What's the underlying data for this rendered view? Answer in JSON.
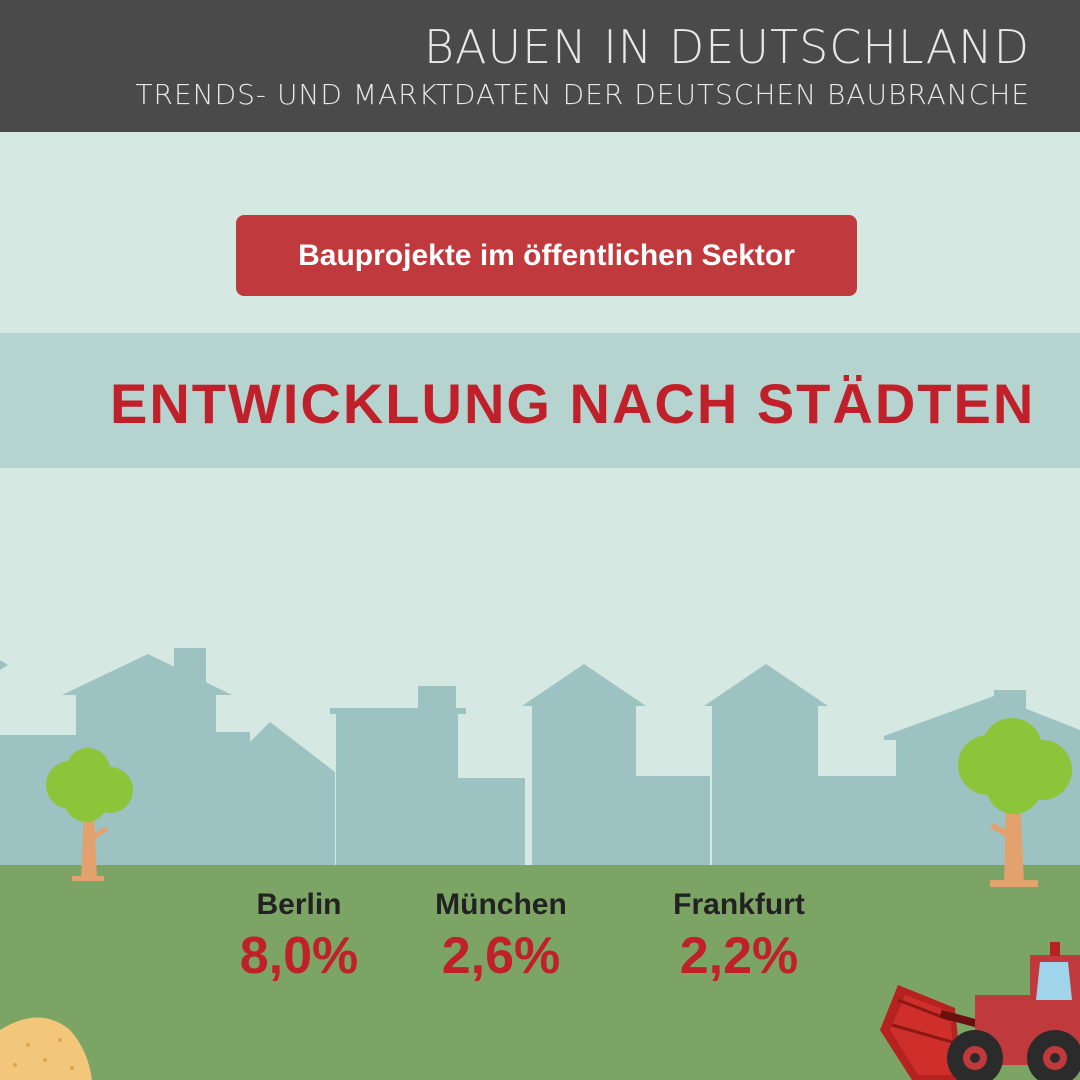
{
  "header": {
    "title": "BAUEN IN DEUTSCHLAND",
    "subtitle": "TRENDS- UND MARKTDATEN DER DEUTSCHEN BAUBRANCHE"
  },
  "pill_label": "Bauprojekte im öffentlichen Sektor",
  "section_heading": "ENTWICKLUNG NACH STÄDTEN",
  "stats": [
    {
      "city": "Berlin",
      "value": "8,0%"
    },
    {
      "city": "München",
      "value": "2,6%"
    },
    {
      "city": "Frankfurt",
      "value": "2,2%"
    }
  ],
  "colors": {
    "header_bg": "#4a4a4a",
    "accent_red": "#c0202a",
    "pill_bg": "#c0393d",
    "sky": "#d5e8e1",
    "skyline": "#9cc2c2",
    "grass": "#7ba465",
    "tree_foliage": "#8cc43a",
    "tree_trunk": "#e3a16e"
  },
  "icons": [
    "house-skyline-icon",
    "tree-icon",
    "sand-pile-icon",
    "bulldozer-icon"
  ]
}
